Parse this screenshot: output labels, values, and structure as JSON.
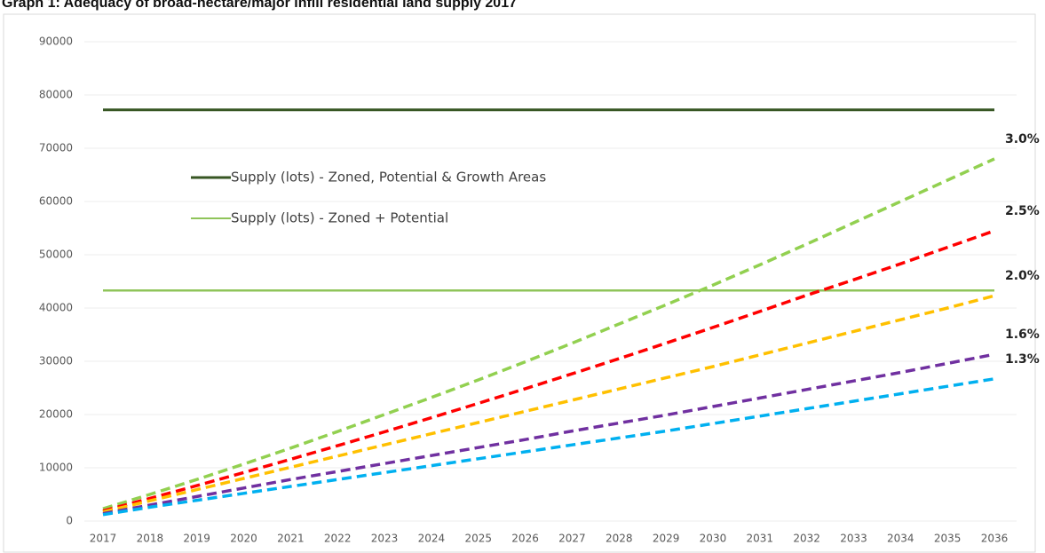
{
  "chart_data": {
    "type": "line",
    "title": "Graph 1: Adequacy of broad-hectare/major infill residential land supply 2017",
    "categories": [
      "2017",
      "2018",
      "2019",
      "2020",
      "2021",
      "2022",
      "2023",
      "2024",
      "2025",
      "2026",
      "2027",
      "2028",
      "2029",
      "2030",
      "2031",
      "2032",
      "2033",
      "2034",
      "2035",
      "2036"
    ],
    "ylim": [
      0,
      90000
    ],
    "yticks": [
      0,
      10000,
      20000,
      30000,
      40000,
      50000,
      60000,
      70000,
      80000,
      90000
    ],
    "grid": true,
    "series": [
      {
        "name": "Supply (lots) - Zoned, Potential & Growth Areas",
        "color": "#375623",
        "dashed": false,
        "values": [
          77200,
          77200,
          77200,
          77200,
          77200,
          77200,
          77200,
          77200,
          77200,
          77200,
          77200,
          77200,
          77200,
          77200,
          77200,
          77200,
          77200,
          77200,
          77200,
          77200
        ]
      },
      {
        "name": "Supply (lots) - Zoned + Potential",
        "color": "#8fc45a",
        "dashed": false,
        "values": [
          43300,
          43300,
          43300,
          43300,
          43300,
          43300,
          43300,
          43300,
          43300,
          43300,
          43300,
          43300,
          43300,
          43300,
          43300,
          43300,
          43300,
          43300,
          43300,
          43300
        ]
      },
      {
        "name": "3.0%",
        "color": "#92d050",
        "dashed": true,
        "values": [
          2300,
          5000,
          7800,
          10700,
          13700,
          16800,
          20000,
          23200,
          26500,
          29900,
          33400,
          37000,
          40600,
          44300,
          48100,
          52000,
          56000,
          60000,
          64000,
          68000
        ]
      },
      {
        "name": "2.5%",
        "color": "#ff0000",
        "dashed": true,
        "values": [
          1900,
          4250,
          6650,
          9100,
          11600,
          14150,
          16750,
          19400,
          22100,
          24850,
          27650,
          30500,
          33400,
          36350,
          39350,
          42400,
          45300,
          48300,
          51400,
          54500
        ]
      },
      {
        "name": "2.0%",
        "color": "#ffc000",
        "dashed": true,
        "values": [
          1700,
          3800,
          5900,
          8000,
          10100,
          12200,
          14300,
          16400,
          18500,
          20600,
          22700,
          24800,
          26900,
          29000,
          31200,
          33400,
          35600,
          37800,
          40000,
          42300
        ]
      },
      {
        "name": "1.6%",
        "color": "#7030a0",
        "dashed": true,
        "values": [
          1400,
          3000,
          4600,
          6200,
          7800,
          9300,
          10800,
          12300,
          13800,
          15300,
          16900,
          18400,
          19900,
          21500,
          23100,
          24700,
          26300,
          27900,
          29600,
          31300
        ]
      },
      {
        "name": "1.3%",
        "color": "#00b0f0",
        "dashed": true,
        "values": [
          1200,
          2600,
          3900,
          5200,
          6500,
          7800,
          9100,
          10400,
          11700,
          13000,
          14300,
          15600,
          16900,
          18300,
          19700,
          21100,
          22500,
          23900,
          25300,
          26700
        ]
      }
    ]
  }
}
